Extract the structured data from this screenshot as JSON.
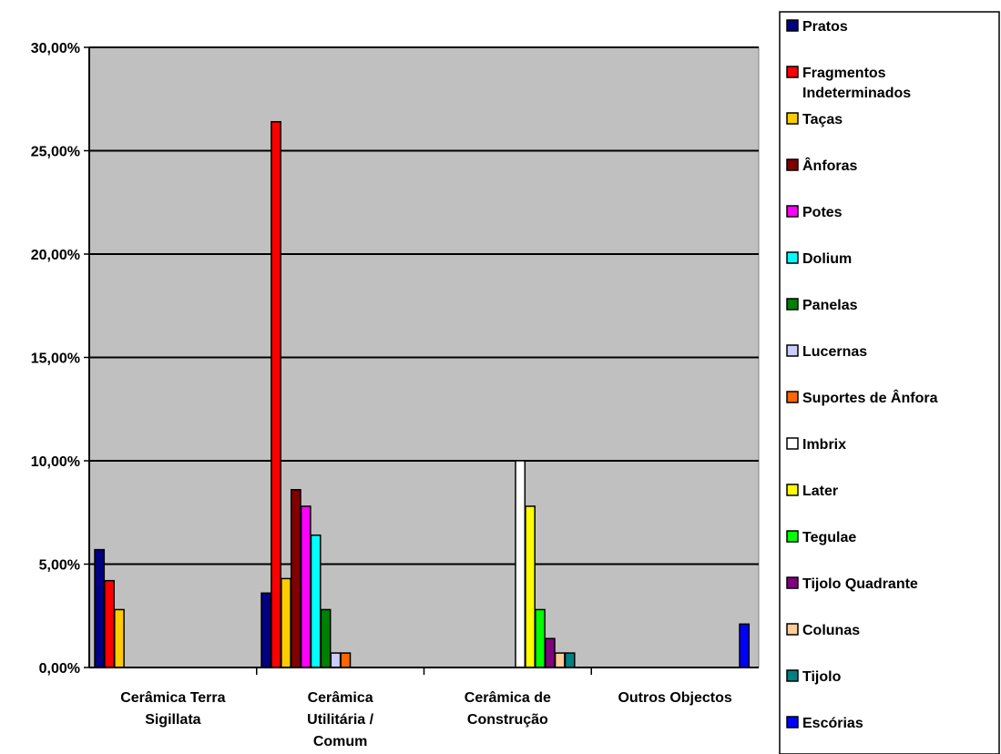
{
  "chart_data": {
    "type": "bar",
    "categories": [
      [
        "Cerâmica Terra",
        "Sigillata"
      ],
      [
        "Cerâmica",
        "Utilitária /",
        "Comum"
      ],
      [
        "Cerâmica de",
        "Construção"
      ],
      [
        "Outros Objectos"
      ]
    ],
    "ylim": [
      0,
      30
    ],
    "yticks": [
      0,
      5,
      10,
      15,
      20,
      25,
      30
    ],
    "ytick_labels": [
      "0,00%",
      "5,00%",
      "10,00%",
      "15,00%",
      "20,00%",
      "25,00%",
      "30,00%"
    ],
    "grid": true,
    "legend_position": "right",
    "series": [
      {
        "name": "Pratos",
        "color": "#000080",
        "values": [
          5.7,
          3.6,
          0,
          0
        ]
      },
      {
        "name": "Fragmentos Indeterminados",
        "color": "#ff0000",
        "values": [
          4.2,
          26.4,
          0,
          0
        ]
      },
      {
        "name": "Taças",
        "color": "#ffcc00",
        "values": [
          2.8,
          4.3,
          0,
          0
        ]
      },
      {
        "name": "Ânforas",
        "color": "#800000",
        "values": [
          0,
          8.6,
          0,
          0
        ]
      },
      {
        "name": "Potes",
        "color": "#ff00ff",
        "values": [
          0,
          7.8,
          0,
          0
        ]
      },
      {
        "name": "Dolium",
        "color": "#00ffff",
        "values": [
          0,
          6.4,
          0,
          0
        ]
      },
      {
        "name": "Panelas",
        "color": "#008000",
        "values": [
          0,
          2.8,
          0,
          0
        ]
      },
      {
        "name": "Lucernas",
        "color": "#ccccff",
        "values": [
          0,
          0.7,
          0,
          0
        ]
      },
      {
        "name": "Suportes de Ânfora",
        "color": "#ff6600",
        "values": [
          0,
          0.7,
          0,
          0
        ]
      },
      {
        "name": "Imbrix",
        "color": "#ffffff",
        "values": [
          0,
          0,
          10,
          0
        ]
      },
      {
        "name": "Later",
        "color": "#ffff00",
        "values": [
          0,
          0,
          7.8,
          0
        ]
      },
      {
        "name": "Tegulae",
        "color": "#00ff00",
        "values": [
          0,
          0,
          2.8,
          0
        ]
      },
      {
        "name": "Tijolo Quadrante",
        "color": "#800080",
        "values": [
          0,
          0,
          1.4,
          0
        ]
      },
      {
        "name": "Colunas",
        "color": "#ffcc99",
        "values": [
          0,
          0,
          0.7,
          0
        ]
      },
      {
        "name": "Tijolo",
        "color": "#008080",
        "values": [
          0,
          0,
          0.7,
          0
        ]
      },
      {
        "name": "Escórias",
        "color": "#0000ff",
        "values": [
          0,
          0,
          0,
          2.1
        ]
      }
    ],
    "plot_background": "#c0c0c0"
  }
}
